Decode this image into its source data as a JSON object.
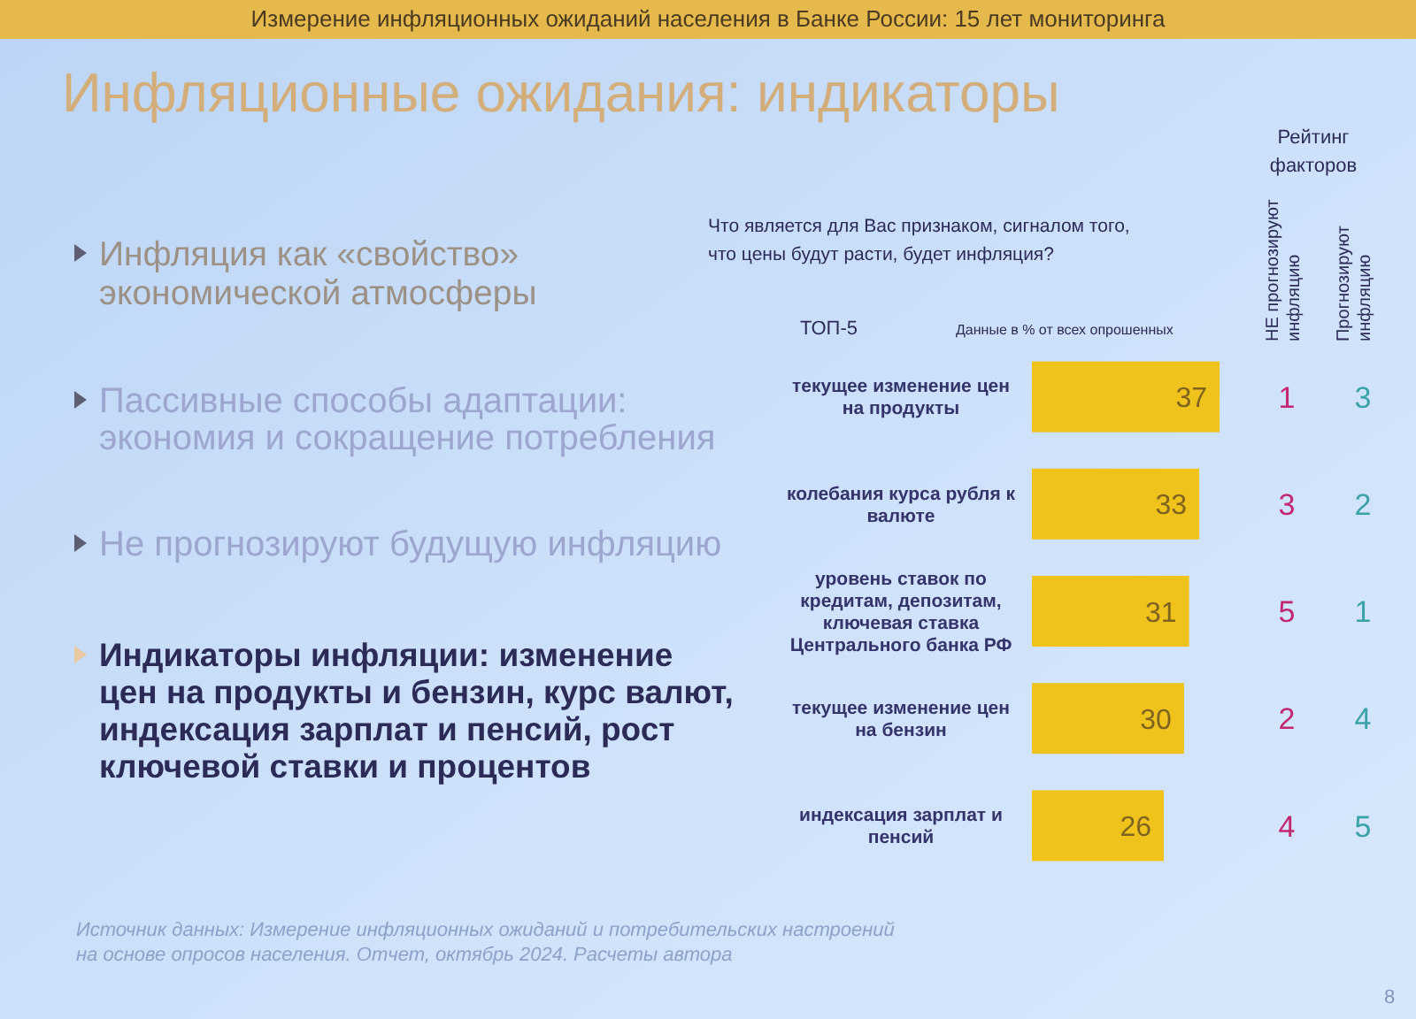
{
  "chart_data": {
    "type": "bar",
    "orientation": "horizontal",
    "title": "Инфляционные ожидания: индикаторы",
    "subtitle": "Что является для Вас признаком, сигналом того, что цены будут расти, будет инфляция?",
    "categories": [
      "текущее изменение цен на продукты",
      "колебания курса рубля к валюте",
      "уровень ставок по кредитам, депозитам, ключевая ставка Центрального банка РФ",
      "текущее изменение цен на бензин",
      "индексация зарплат и пенсий"
    ],
    "values": [
      37,
      33,
      31,
      30,
      26
    ],
    "color": "#f0c21c",
    "data_labels": true,
    "annotations": [
      "Измерение инфляционных ожиданий населения в Банке России: 15 лет мониторинга",
      "Инфляция как «свойство» экономической атмосферы",
      "Пассивные способы адаптации: экономия и сокращение потребления",
      "Не прогнозируют будущую инфляцию",
      "Индикаторы инфляции: изменение цен на продукты и бензин, курс валют, индексация зарплат и пенсий, рост ключевой ставки и процентов",
      "ТОП-5",
      "Данные в % от всех опрошенных",
      "Рейтинг факторов",
      "НЕ прогнозируют инфляцию",
      "Прогнозируют инфляцию",
      "1",
      "3",
      "5",
      "2",
      "4",
      "3",
      "2",
      "1",
      "4",
      "5",
      "Источник данных: Измерение инфляционных ожиданий и потребительских настроений на основе опросов населения. Отчет, октябрь 2024. Расчеты автора",
      "8"
    ]
  }
}
